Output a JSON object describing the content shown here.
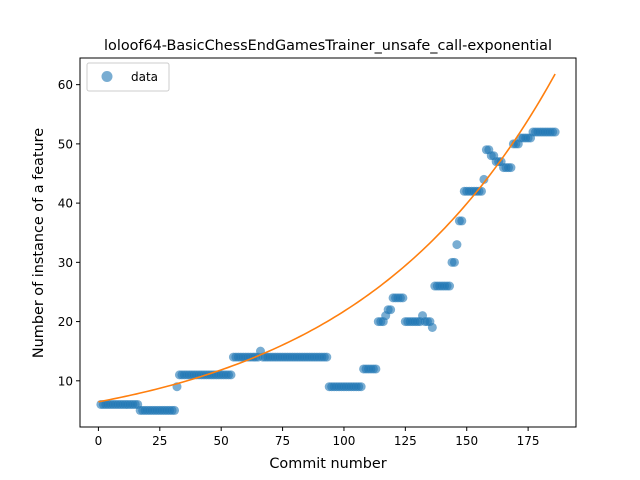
{
  "chart_data": {
    "type": "scatter",
    "title": "loloof64-BasicChessEndGamesTrainer_unsafe_call-exponential",
    "xlabel": "Commit number",
    "ylabel": "Number of instance of a feature",
    "xlim": [
      -7.5,
      194.5
    ],
    "ylim": [
      2.2,
      64.5
    ],
    "xticks": [
      0,
      25,
      50,
      75,
      100,
      125,
      150,
      175
    ],
    "yticks": [
      10,
      20,
      30,
      40,
      50,
      60
    ],
    "grid": false,
    "legend": {
      "position": "top-left",
      "entries": [
        {
          "label": "data"
        }
      ]
    },
    "colors": {
      "data": "#1f77b4",
      "fit": "#ff7f0e"
    },
    "series": [
      {
        "name": "data",
        "kind": "scatter",
        "runs": [
          {
            "x_start": 1,
            "x_end": 16,
            "y": 6
          },
          {
            "x_start": 17,
            "x_end": 31,
            "y": 5
          },
          {
            "x_start": 32,
            "x_end": 32,
            "y": 9
          },
          {
            "x_start": 33,
            "x_end": 54,
            "y": 11
          },
          {
            "x_start": 55,
            "x_end": 65,
            "y": 14
          },
          {
            "x_start": 66,
            "x_end": 66,
            "y": 15
          },
          {
            "x_start": 67,
            "x_end": 93,
            "y": 14
          },
          {
            "x_start": 94,
            "x_end": 107,
            "y": 9
          },
          {
            "x_start": 108,
            "x_end": 113,
            "y": 12
          },
          {
            "x_start": 114,
            "x_end": 116,
            "y": 20
          },
          {
            "x_start": 117,
            "x_end": 117,
            "y": 21
          },
          {
            "x_start": 118,
            "x_end": 119,
            "y": 22
          },
          {
            "x_start": 120,
            "x_end": 124,
            "y": 24
          },
          {
            "x_start": 125,
            "x_end": 131,
            "y": 20
          },
          {
            "x_start": 132,
            "x_end": 132,
            "y": 21
          },
          {
            "x_start": 133,
            "x_end": 135,
            "y": 20
          },
          {
            "x_start": 136,
            "x_end": 136,
            "y": 19
          },
          {
            "x_start": 137,
            "x_end": 143,
            "y": 26
          },
          {
            "x_start": 144,
            "x_end": 145,
            "y": 30
          },
          {
            "x_start": 146,
            "x_end": 146,
            "y": 33
          },
          {
            "x_start": 147,
            "x_end": 148,
            "y": 37
          },
          {
            "x_start": 149,
            "x_end": 156,
            "y": 42
          },
          {
            "x_start": 157,
            "x_end": 157,
            "y": 44
          },
          {
            "x_start": 158,
            "x_end": 159,
            "y": 49
          },
          {
            "x_start": 160,
            "x_end": 161,
            "y": 48
          },
          {
            "x_start": 162,
            "x_end": 164,
            "y": 47
          },
          {
            "x_start": 165,
            "x_end": 168,
            "y": 46
          },
          {
            "x_start": 169,
            "x_end": 171,
            "y": 50
          },
          {
            "x_start": 172,
            "x_end": 174,
            "y": 51
          },
          {
            "x_start": 175,
            "x_end": 176,
            "y": 51
          },
          {
            "x_start": 177,
            "x_end": 186,
            "y": 52
          }
        ]
      },
      {
        "kind": "line",
        "model": "exponential",
        "a": 6.45,
        "b": 0.01215,
        "x_range": [
          0,
          186
        ]
      }
    ]
  }
}
